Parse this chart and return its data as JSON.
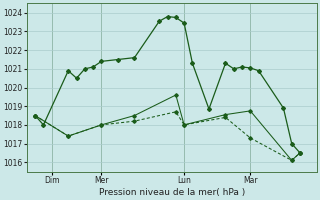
{
  "xlabel": "Pression niveau de la mer( hPa )",
  "ylim": [
    1015.5,
    1024.5
  ],
  "yticks": [
    1016,
    1017,
    1018,
    1019,
    1020,
    1021,
    1022,
    1023,
    1024
  ],
  "background_color": "#cce8e8",
  "grid_color": "#aacccc",
  "line_color": "#1a5c1a",
  "day_labels": [
    "Dim",
    "Mer",
    "Lun",
    "Mar"
  ],
  "day_positions": [
    1,
    4,
    9,
    13
  ],
  "vline_positions": [
    1,
    4,
    9,
    13
  ],
  "xlim": [
    -0.5,
    17.0
  ],
  "series1_x": [
    0,
    0.5,
    2.0,
    2.5,
    3.0,
    3.5,
    4.0,
    5.0,
    6.0,
    7.5,
    8.0,
    8.5,
    9.0,
    9.5,
    10.5,
    11.5,
    12.0,
    12.5,
    13.0,
    13.5,
    15.0,
    15.5,
    16.0
  ],
  "series1_y": [
    1018.5,
    1018.0,
    1020.9,
    1020.5,
    1021.0,
    1021.1,
    1021.4,
    1021.5,
    1021.6,
    1023.55,
    1023.8,
    1023.75,
    1023.45,
    1021.3,
    1018.85,
    1021.3,
    1021.0,
    1021.1,
    1021.05,
    1020.9,
    1018.9,
    1017.0,
    1016.5
  ],
  "series2_x": [
    0,
    2.0,
    4.0,
    6.0,
    8.5,
    9.0,
    11.5,
    13.0,
    15.5,
    16.0
  ],
  "series2_y": [
    1018.5,
    1017.4,
    1018.0,
    1018.5,
    1019.6,
    1018.0,
    1018.55,
    1018.75,
    1016.1,
    1016.5
  ],
  "series3_x": [
    0,
    2.0,
    4.0,
    6.0,
    8.5,
    9.0,
    11.5,
    13.0,
    15.5,
    16.0
  ],
  "series3_y": [
    1018.5,
    1017.4,
    1018.0,
    1018.2,
    1018.7,
    1018.0,
    1018.4,
    1017.3,
    1016.1,
    1016.5
  ],
  "tick_fontsize": 5.5,
  "xlabel_fontsize": 6.5
}
